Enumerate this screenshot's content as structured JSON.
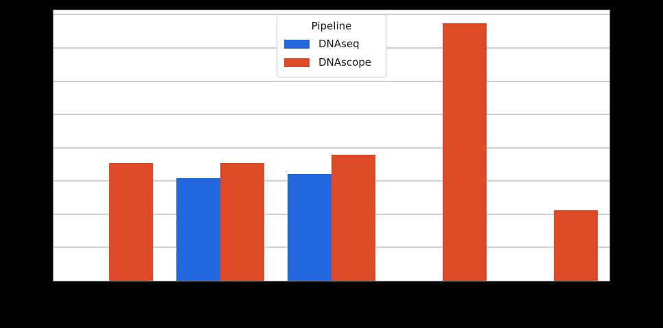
{
  "figure": {
    "background_color": "#000000",
    "plot_background_color": "#ffffff",
    "spine_color": "#8a8a8a",
    "grid_color": "#cfcfcf"
  },
  "legend": {
    "title": "Pipeline",
    "entries": [
      {
        "label": "DNAseq",
        "color": "#2368DE",
        "swatch": "legend-swatch-dnaseq-icon"
      },
      {
        "label": "DNAscope",
        "color": "#DC4A28",
        "swatch": "legend-swatch-dnascope-icon"
      }
    ]
  },
  "chart_data": {
    "type": "bar",
    "title": "",
    "xlabel": "",
    "ylabel": "",
    "categories": [
      "",
      "",
      "",
      "",
      ""
    ],
    "series": [
      {
        "name": "DNAseq",
        "color": "#2368DE",
        "values": [
          null,
          3.08,
          3.21,
          null,
          null
        ]
      },
      {
        "name": "DNAscope",
        "color": "#DC4A28",
        "values": [
          3.55,
          3.55,
          3.78,
          7.74,
          2.13
        ]
      }
    ],
    "ylim": [
      0,
      8.13
    ],
    "gridlines_y": [
      1,
      2,
      3,
      4,
      5,
      6,
      7,
      8
    ],
    "grid": true,
    "legend_position": "upper center",
    "legend_title": "Pipeline",
    "tick_labels_visible": false,
    "y_unit": "gridline units (tick labels not visible in image)"
  }
}
